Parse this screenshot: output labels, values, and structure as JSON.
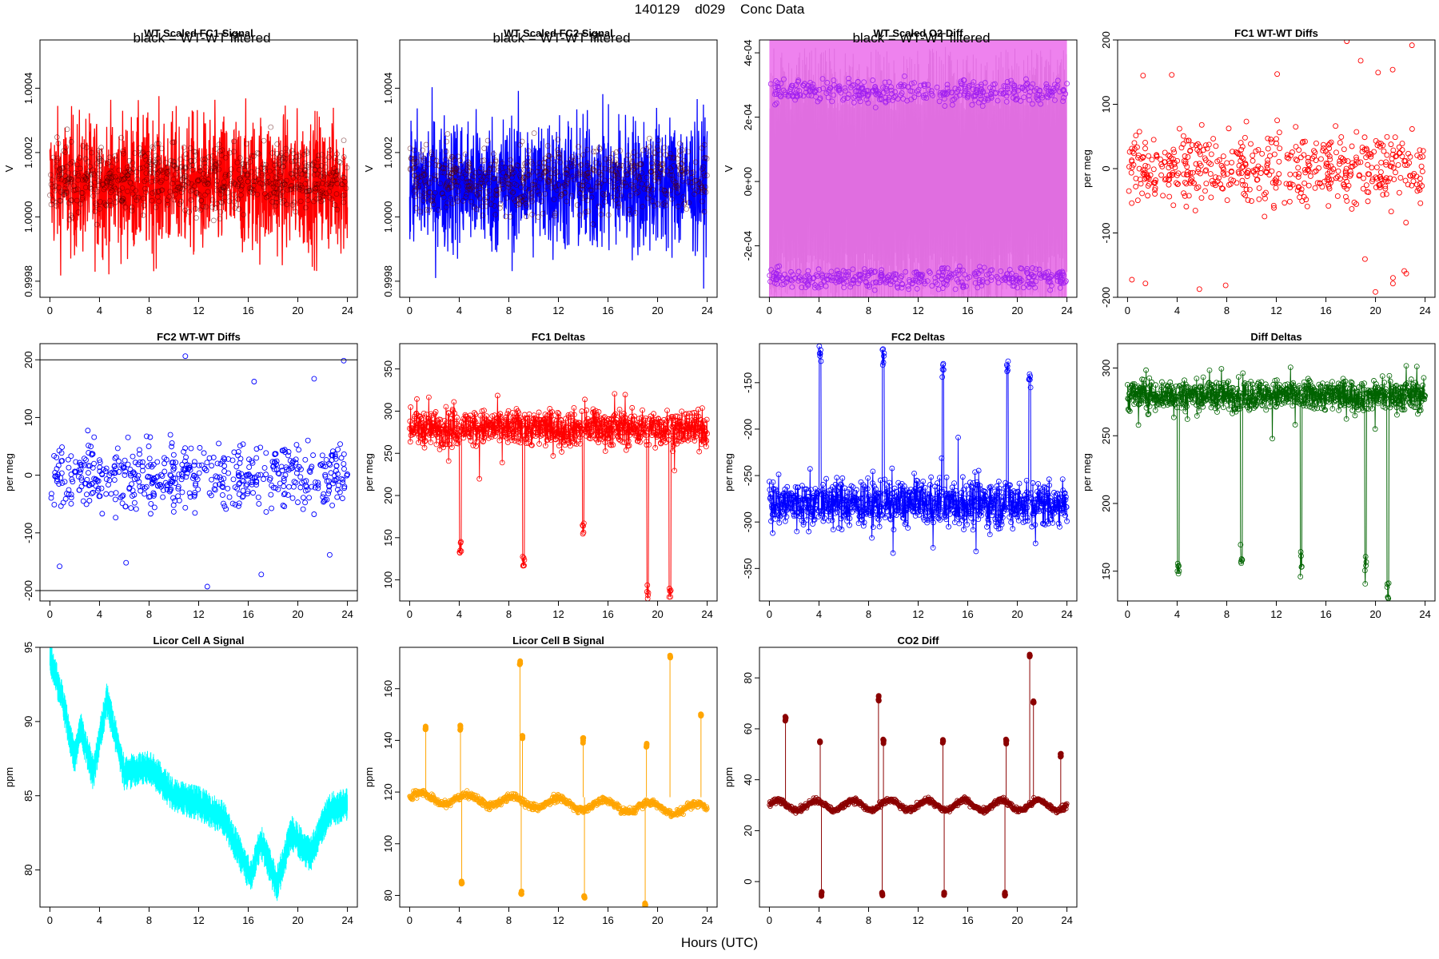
{
  "header": {
    "title": "140129    d029    Conc Data",
    "xlabel": "Hours (UTC)"
  },
  "colors": {
    "red": "#ff0000",
    "blue": "#0000ff",
    "violet": "#ee82ee",
    "purple": "#a020f0",
    "green": "#006400",
    "cyan": "#00ffff",
    "orange": "#ffa500",
    "darkred": "#8b0000"
  },
  "chart_data": [
    {
      "id": "fc1-signal",
      "type": "line",
      "title": "WT Scaled FC1 Signal",
      "annotation": "black = WT-WT filtered",
      "ylabel": "V",
      "xlim": [
        -0.8,
        24.8
      ],
      "ylim": [
        0.99975,
        1.00055
      ],
      "xticks": [
        "0",
        "4",
        "8",
        "12",
        "16",
        "20",
        "24"
      ],
      "yticks": [
        "0.9998",
        "1.0000",
        "1.0002",
        "1.0004"
      ],
      "series": [
        {
          "color": "red",
          "center": 1.0001,
          "amplitude": 0.00028,
          "style": "band"
        },
        {
          "color": "black",
          "center": 1.00012,
          "amplitude": 0.00015,
          "style": "points"
        }
      ]
    },
    {
      "id": "fc2-signal",
      "type": "line",
      "title": "WT Scaled FC2 Signal",
      "annotation": "black = WT-WT filtered",
      "ylabel": "V",
      "xlim": [
        -0.8,
        24.8
      ],
      "ylim": [
        0.99975,
        1.00055
      ],
      "xticks": [
        "0",
        "4",
        "8",
        "12",
        "16",
        "20",
        "24"
      ],
      "yticks": [
        "0.9998",
        "1.0000",
        "1.0002",
        "1.0004"
      ],
      "series": [
        {
          "color": "blue",
          "center": 1.0001,
          "amplitude": 0.00028,
          "style": "band"
        },
        {
          "color": "black",
          "center": 1.00012,
          "amplitude": 0.00015,
          "style": "points"
        }
      ]
    },
    {
      "id": "o2-diff",
      "type": "line",
      "title": "WT Scaled O2 Diff",
      "annotation": "black = WT-WT filtered",
      "ylabel": "V",
      "xlim": [
        -0.8,
        24.8
      ],
      "ylim": [
        -0.00036,
        0.00044
      ],
      "xticks": [
        "0",
        "4",
        "8",
        "12",
        "16",
        "20",
        "24"
      ],
      "yticks": [
        "-2e-04",
        "0e+00",
        "2e-04",
        "4e-04"
      ],
      "series": [
        {
          "color": "violet",
          "center": 0.0,
          "amplitude": 0.00044,
          "style": "band"
        },
        {
          "color": "purple",
          "levels": [
            0.00028,
            -0.0003
          ],
          "style": "points"
        }
      ]
    },
    {
      "id": "fc1-wt-diffs",
      "type": "scatter",
      "title": "FC1 WT-WT Diffs",
      "ylabel": "per meg",
      "xlim": [
        -0.8,
        24.8
      ],
      "ylim": [
        -200,
        200
      ],
      "hlines": [
        200
      ],
      "xticks": [
        "0",
        "4",
        "8",
        "12",
        "16",
        "20",
        "24"
      ],
      "yticks": [
        "-200",
        "-100",
        "0",
        "100",
        "200"
      ],
      "series": [
        {
          "color": "red",
          "center": 0,
          "spread": 40
        }
      ]
    },
    {
      "id": "fc2-wt-diffs",
      "type": "scatter",
      "title": "FC2 WT-WT Diffs",
      "ylabel": "per meg",
      "xlim": [
        -0.8,
        24.8
      ],
      "ylim": [
        -218,
        228
      ],
      "hlines": [
        200,
        -200
      ],
      "xticks": [
        "0",
        "4",
        "8",
        "12",
        "16",
        "20",
        "24"
      ],
      "yticks": [
        "-200",
        "-100",
        "0",
        "100",
        "200"
      ],
      "series": [
        {
          "color": "blue",
          "center": 0,
          "spread": 42
        }
      ]
    },
    {
      "id": "fc1-deltas",
      "type": "line",
      "title": "FC1 Deltas",
      "ylabel": "per meg",
      "xlim": [
        -0.8,
        24.8
      ],
      "ylim": [
        75,
        380
      ],
      "xticks": [
        "0",
        "4",
        "8",
        "12",
        "16",
        "20",
        "24"
      ],
      "yticks": [
        "100",
        "150",
        "200",
        "250",
        "300",
        "350"
      ],
      "series": [
        {
          "color": "red",
          "center": 280,
          "spread": 15,
          "dips": [
            [
              4.1,
              140
            ],
            [
              9.2,
              125
            ],
            [
              14.0,
              160
            ],
            [
              19.2,
              88
            ],
            [
              21.0,
              85
            ]
          ]
        }
      ]
    },
    {
      "id": "fc2-deltas",
      "type": "line",
      "title": "FC2 Deltas",
      "ylabel": "per meg",
      "xlim": [
        -0.8,
        24.8
      ],
      "ylim": [
        -385,
        -108
      ],
      "xticks": [
        "0",
        "4",
        "8",
        "12",
        "16",
        "20",
        "24"
      ],
      "yticks": [
        "-350",
        "-300",
        "-250",
        "-200",
        "-150"
      ],
      "series": [
        {
          "color": "blue",
          "center": -280,
          "spread": 18,
          "dips": [
            [
              4.1,
              -115
            ],
            [
              9.2,
              -120
            ],
            [
              14.0,
              -135
            ],
            [
              19.2,
              -130
            ],
            [
              21.0,
              -150
            ]
          ]
        }
      ]
    },
    {
      "id": "diff-deltas",
      "type": "line",
      "title": "Diff Deltas",
      "ylabel": "per meg",
      "xlim": [
        -0.8,
        24.8
      ],
      "ylim": [
        128,
        318
      ],
      "xticks": [
        "0",
        "4",
        "8",
        "12",
        "16",
        "20",
        "24"
      ],
      "yticks": [
        "150",
        "200",
        "250",
        "300"
      ],
      "series": [
        {
          "color": "green",
          "center": 280,
          "spread": 8,
          "dips": [
            [
              4.1,
              155
            ],
            [
              9.2,
              160
            ],
            [
              14.0,
              155
            ],
            [
              19.2,
              152
            ],
            [
              21.0,
              133
            ]
          ]
        }
      ]
    },
    {
      "id": "licor-a",
      "type": "line",
      "title": "Licor Cell A Signal",
      "ylabel": "ppm",
      "xlim": [
        -0.8,
        24.8
      ],
      "ylim": [
        77.5,
        95
      ],
      "xticks": [
        "0",
        "4",
        "8",
        "12",
        "16",
        "20",
        "24"
      ],
      "yticks": [
        "80",
        "85",
        "90",
        "95"
      ],
      "series": [
        {
          "color": "cyan",
          "style": "band",
          "trend": [
            [
              0,
              94.5
            ],
            [
              1,
              91.5
            ],
            [
              2,
              87.5
            ],
            [
              2.5,
              89.5
            ],
            [
              3.5,
              86.5
            ],
            [
              4.6,
              91.5
            ],
            [
              6,
              86.5
            ],
            [
              8,
              87
            ],
            [
              10,
              85
            ],
            [
              12,
              84.5
            ],
            [
              14,
              83.5
            ],
            [
              16.2,
              79.5
            ],
            [
              17,
              82
            ],
            [
              18.3,
              79
            ],
            [
              19.5,
              82.5
            ],
            [
              21,
              81
            ],
            [
              22.5,
              84
            ],
            [
              24,
              84.5
            ]
          ]
        }
      ]
    },
    {
      "id": "licor-b",
      "type": "line",
      "title": "Licor Cell B Signal",
      "ylabel": "ppm",
      "xlim": [
        -0.8,
        24.8
      ],
      "ylim": [
        75.5,
        176
      ],
      "xticks": [
        "0",
        "4",
        "8",
        "12",
        "16",
        "20",
        "24"
      ],
      "yticks": [
        "80",
        "100",
        "120",
        "140",
        "160"
      ],
      "series": [
        {
          "color": "orange",
          "baseline": 118,
          "spikes": [
            [
              1.3,
              145
            ],
            [
              4.1,
              145
            ],
            [
              4.2,
              85
            ],
            [
              8.9,
              170
            ],
            [
              9.1,
              141
            ],
            [
              9.0,
              81
            ],
            [
              14.0,
              140
            ],
            [
              14.1,
              79
            ],
            [
              19.1,
              138
            ],
            [
              19.0,
              77
            ],
            [
              21.0,
              172
            ],
            [
              23.5,
              150
            ]
          ]
        }
      ]
    },
    {
      "id": "co2-diff",
      "type": "line",
      "title": "CO2 Diff",
      "ylabel": "ppm",
      "xlim": [
        -0.8,
        24.8
      ],
      "ylim": [
        -10,
        92
      ],
      "xticks": [
        "0",
        "4",
        "8",
        "12",
        "16",
        "20",
        "24"
      ],
      "yticks": [
        "0",
        "20",
        "40",
        "60",
        "80"
      ],
      "series": [
        {
          "color": "darkred",
          "baseline": 30,
          "spikes": [
            [
              1.3,
              64
            ],
            [
              4.1,
              55
            ],
            [
              4.2,
              -5
            ],
            [
              8.8,
              72
            ],
            [
              9.2,
              55
            ],
            [
              9.1,
              -5
            ],
            [
              14.0,
              55
            ],
            [
              14.1,
              -5
            ],
            [
              19.1,
              55
            ],
            [
              19.0,
              -5
            ],
            [
              21.0,
              89
            ],
            [
              21.3,
              70
            ],
            [
              23.5,
              50
            ]
          ]
        }
      ]
    }
  ]
}
